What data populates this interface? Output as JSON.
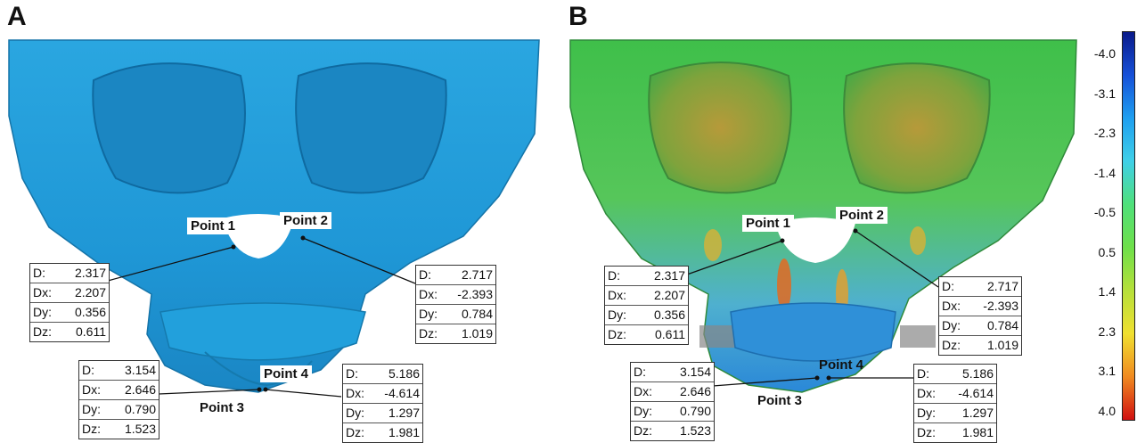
{
  "panels": [
    {
      "letter": "A",
      "style": "monochrome",
      "points": [
        {
          "label": "Point 1",
          "D": "2.317",
          "Dx": "2.207",
          "Dy": "0.356",
          "Dz": "0.611"
        },
        {
          "label": "Point 2",
          "D": "2.717",
          "Dx": "-2.393",
          "Dy": "0.784",
          "Dz": "1.019"
        },
        {
          "label": "Point 3",
          "D": "3.154",
          "Dx": "2.646",
          "Dy": "0.790",
          "Dz": "1.523"
        },
        {
          "label": "Point 4",
          "D": "5.186",
          "Dx": "-4.614",
          "Dy": "1.297",
          "Dz": "1.981"
        }
      ]
    },
    {
      "letter": "B",
      "style": "color-deviation-map",
      "points": [
        {
          "label": "Point 1",
          "D": "2.317",
          "Dx": "2.207",
          "Dy": "0.356",
          "Dz": "0.611"
        },
        {
          "label": "Point 2",
          "D": "2.717",
          "Dx": "-2.393",
          "Dy": "0.784",
          "Dz": "1.019"
        },
        {
          "label": "Point 3",
          "D": "3.154",
          "Dx": "2.646",
          "Dy": "0.790",
          "Dz": "1.523"
        },
        {
          "label": "Point 4",
          "D": "5.186",
          "Dx": "-4.614",
          "Dy": "1.297",
          "Dz": "1.981"
        }
      ]
    }
  ],
  "keys": {
    "D": "D:",
    "Dx": "Dx:",
    "Dy": "Dy:",
    "Dz": "Dz:"
  },
  "color_scale": {
    "ticks": [
      "-4.0",
      "-3.1",
      "-2.3",
      "-1.4",
      "-0.5",
      "0.5",
      "1.4",
      "2.3",
      "3.1",
      "4.0"
    ],
    "colors": [
      "#0a1a8a",
      "#1650d8",
      "#1e9ff0",
      "#3fd0e8",
      "#4fe07a",
      "#6ee04a",
      "#b6e03a",
      "#f0e030",
      "#f08a20",
      "#d01010"
    ]
  }
}
